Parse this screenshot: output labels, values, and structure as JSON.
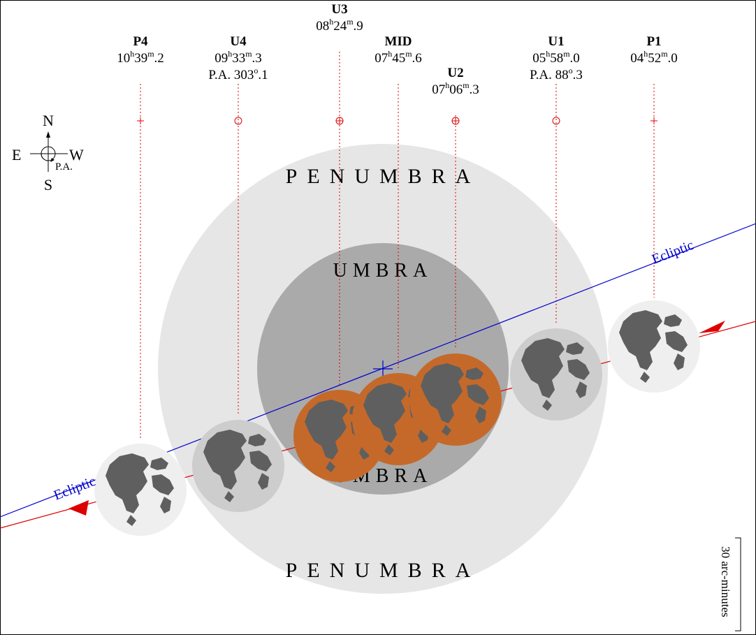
{
  "events": [
    {
      "id": "P1",
      "label": "P1",
      "hh": "04",
      "mm": "52",
      "tenths": "0",
      "pa_deg": "",
      "pa_tenths": "",
      "marker": "plus"
    },
    {
      "id": "U1",
      "label": "U1",
      "hh": "05",
      "mm": "58",
      "tenths": "0",
      "pa_deg": "88",
      "pa_tenths": "3",
      "marker": "circle"
    },
    {
      "id": "U2",
      "label": "U2",
      "hh": "07",
      "mm": "06",
      "tenths": "3",
      "pa_deg": "",
      "pa_tenths": "",
      "marker": "circleplus"
    },
    {
      "id": "MID",
      "label": "MID",
      "hh": "07",
      "mm": "45",
      "tenths": "6",
      "pa_deg": "",
      "pa_tenths": "",
      "marker": "none"
    },
    {
      "id": "U3",
      "label": "U3",
      "hh": "08",
      "mm": "24",
      "tenths": "9",
      "pa_deg": "",
      "pa_tenths": "",
      "marker": "circleplus"
    },
    {
      "id": "U4",
      "label": "U4",
      "hh": "09",
      "mm": "33",
      "tenths": "3",
      "pa_deg": "303",
      "pa_tenths": "1",
      "marker": "circle"
    },
    {
      "id": "P4",
      "label": "P4",
      "hh": "10",
      "mm": "39",
      "tenths": "2",
      "pa_deg": "",
      "pa_tenths": "",
      "marker": "plus"
    }
  ],
  "compass": {
    "north": "N",
    "south": "S",
    "east": "E",
    "west": "W",
    "pa": "P.A."
  },
  "labels": {
    "penumbra_top": "PENUMBRA",
    "penumbra_bottom": "PENUMBRA",
    "umbra_top": "UMBRA",
    "umbra_bottom": "UMBRA",
    "ecliptic_right": "Ecliptic",
    "ecliptic_left": "Ecliptic",
    "scale": "30 arc-minutes",
    "pa_prefix": "P.A.",
    "hour_sup": "h",
    "minute_sup": "m",
    "degree_sup": "o"
  },
  "colors": {
    "penumbra": "#e6e6e6",
    "umbra": "#aaaaaa",
    "ecliptic": "#0000cc",
    "path": "#dd0000",
    "moon_full": "#efefef",
    "moon_penumbral": "#cdcdcd",
    "moon_eclipsed": "#c5692a",
    "maria": "#5f5f5f"
  }
}
